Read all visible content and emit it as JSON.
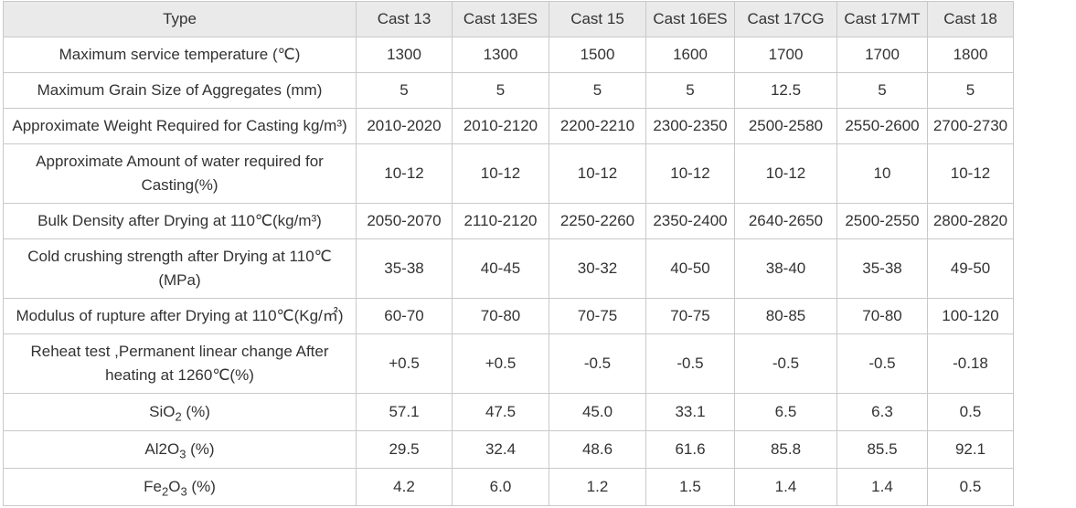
{
  "table": {
    "headers": [
      "Type",
      "Cast 13",
      "Cast 13ES",
      "Cast 15",
      "Cast 16ES",
      "Cast 17CG",
      "Cast 17MT",
      "Cast 18"
    ],
    "rows": [
      {
        "label": "Maximum service temperature (℃)",
        "values": [
          "1300",
          "1300",
          "1500",
          "1600",
          "1700",
          "1700",
          "1800"
        ]
      },
      {
        "label": "Maximum Grain Size of Aggregates (mm)",
        "values": [
          "5",
          "5",
          "5",
          "5",
          "12.5",
          "5",
          "5"
        ]
      },
      {
        "label": "Approximate Weight Required for Casting kg/m³)",
        "values": [
          "2010-2020",
          "2010-2120",
          "2200-2210",
          "2300-2350",
          "2500-2580",
          "2550-2600",
          "2700-2730"
        ]
      },
      {
        "label": "Approximate Amount of water required for Casting(%)",
        "values": [
          "10-12",
          "10-12",
          "10-12",
          "10-12",
          "10-12",
          "10",
          "10-12"
        ]
      },
      {
        "label": "Bulk Density after Drying at 110℃(kg/m³)",
        "values": [
          "2050-2070",
          "2110-2120",
          "2250-2260",
          "2350-2400",
          "2640-2650",
          "2500-2550",
          "2800-2820"
        ]
      },
      {
        "label": "Cold crushing strength after Drying at 110℃ (MPa)",
        "values": [
          "35-38",
          "40-45",
          "30-32",
          "40-50",
          "38-40",
          "35-38",
          "49-50"
        ]
      },
      {
        "label": "Modulus of rupture after Drying at 110℃(Kg/㎡)",
        "values": [
          "60-70",
          "70-80",
          "70-75",
          "70-75",
          "80-85",
          "70-80",
          "100-120"
        ]
      },
      {
        "label": "Reheat test ,Permanent linear change After heating at 1260℃(%)",
        "values": [
          "+0.5",
          "+0.5",
          "-0.5",
          "-0.5",
          "-0.5",
          "-0.5",
          "-0.18"
        ]
      },
      {
        "label_pre": "SiO",
        "label_sub": "2",
        "label_post": " (%)",
        "values": [
          "57.1",
          "47.5",
          "45.0",
          "33.1",
          "6.5",
          "6.3",
          "0.5"
        ]
      },
      {
        "label_pre": "Al2O",
        "label_sub": "3",
        "label_post": " (%)",
        "values": [
          "29.5",
          "32.4",
          "48.6",
          "61.6",
          "85.8",
          "85.5",
          "92.1"
        ]
      },
      {
        "label_pre": "Fe",
        "label_sub": "2",
        "label_mid": "O",
        "label_sub2": "3",
        "label_post": " (%)",
        "values": [
          "4.2",
          "6.0",
          "1.2",
          "1.5",
          "1.4",
          "1.4",
          "0.5"
        ]
      }
    ]
  }
}
